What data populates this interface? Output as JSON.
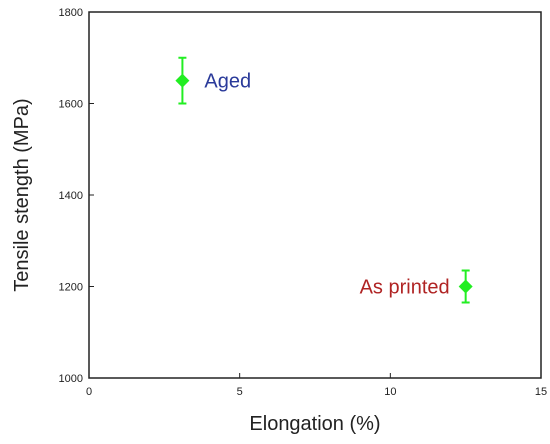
{
  "chart_data": {
    "type": "scatter",
    "xlabel": "Elongation (%)",
    "ylabel": "Tensile stength (MPa)",
    "xlim": [
      0,
      15
    ],
    "ylim": [
      1000,
      1800
    ],
    "x_ticks": [
      "0",
      "5",
      "10",
      "15"
    ],
    "y_ticks": [
      "1000",
      "1200",
      "1400",
      "1600",
      "1800"
    ],
    "grid": false,
    "marker_color": "#22ee22",
    "points": [
      {
        "label": "Aged",
        "x": 3.1,
        "y": 1650,
        "err_low": 1600,
        "err_high": 1700,
        "label_color": "#2a3a9a"
      },
      {
        "label": "As printed",
        "x": 12.5,
        "y": 1200,
        "err_low": 1165,
        "err_high": 1235,
        "label_color": "#b02424"
      }
    ]
  }
}
